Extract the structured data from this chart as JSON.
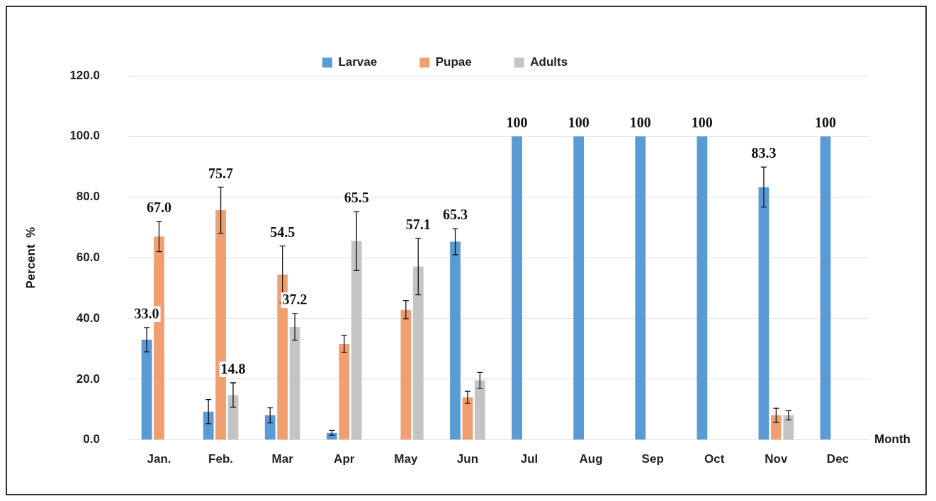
{
  "chart_data": {
    "type": "bar",
    "xlabel": "Month",
    "ylabel": "Percent  %",
    "categories": [
      "Jan.",
      "Feb.",
      "Mar",
      "Apr",
      "May",
      "Jun",
      "Jul",
      "Aug",
      "Sep",
      "Oct",
      "Nov",
      "Dec"
    ],
    "series": [
      {
        "name": "Larvae",
        "color": "#5b9bd5",
        "values": [
          33.0,
          9.3,
          8.1,
          2.3,
          null,
          65.3,
          100,
          100,
          100,
          100,
          83.3,
          100
        ],
        "errors": [
          4,
          4,
          2.5,
          0.8,
          null,
          4.3,
          null,
          null,
          null,
          null,
          6.6,
          null
        ],
        "value_labels": [
          "33.0",
          null,
          null,
          null,
          null,
          "65.3",
          "100",
          "100",
          "100",
          "100",
          "83.3",
          "100"
        ]
      },
      {
        "name": "Pupae",
        "color": "#f0a070",
        "values": [
          67.0,
          75.7,
          54.5,
          31.6,
          42.9,
          14,
          null,
          null,
          null,
          null,
          8.1,
          null
        ],
        "errors": [
          5,
          7.6,
          9.4,
          2.8,
          3,
          2,
          null,
          null,
          null,
          null,
          2.3,
          null
        ],
        "value_labels": [
          "67.0",
          "75.7",
          "54.5",
          null,
          null,
          null,
          null,
          null,
          null,
          null,
          null,
          null
        ]
      },
      {
        "name": "Adults",
        "color": "#c4c4c4",
        "values": [
          null,
          14.8,
          37.2,
          65.5,
          57.1,
          19.6,
          null,
          null,
          null,
          null,
          8.1,
          null
        ],
        "errors": [
          null,
          4,
          4.4,
          9.7,
          9.3,
          2.6,
          null,
          null,
          null,
          null,
          1.5,
          null
        ],
        "value_labels": [
          null,
          "14.8",
          "37.2",
          "65.5",
          "57.1",
          null,
          null,
          null,
          null,
          null,
          null,
          null
        ]
      }
    ],
    "ylim": [
      0,
      120
    ],
    "yticks": [
      {
        "value": 0,
        "label": "0.0"
      },
      {
        "value": 20,
        "label": "20.0"
      },
      {
        "value": 40,
        "label": "40.0"
      },
      {
        "value": 60,
        "label": "60.0"
      },
      {
        "value": 80,
        "label": "80.0"
      },
      {
        "value": 100,
        "label": "100.0"
      },
      {
        "value": 120,
        "label": "120.0"
      }
    ],
    "grid": "y",
    "legend": "top"
  }
}
